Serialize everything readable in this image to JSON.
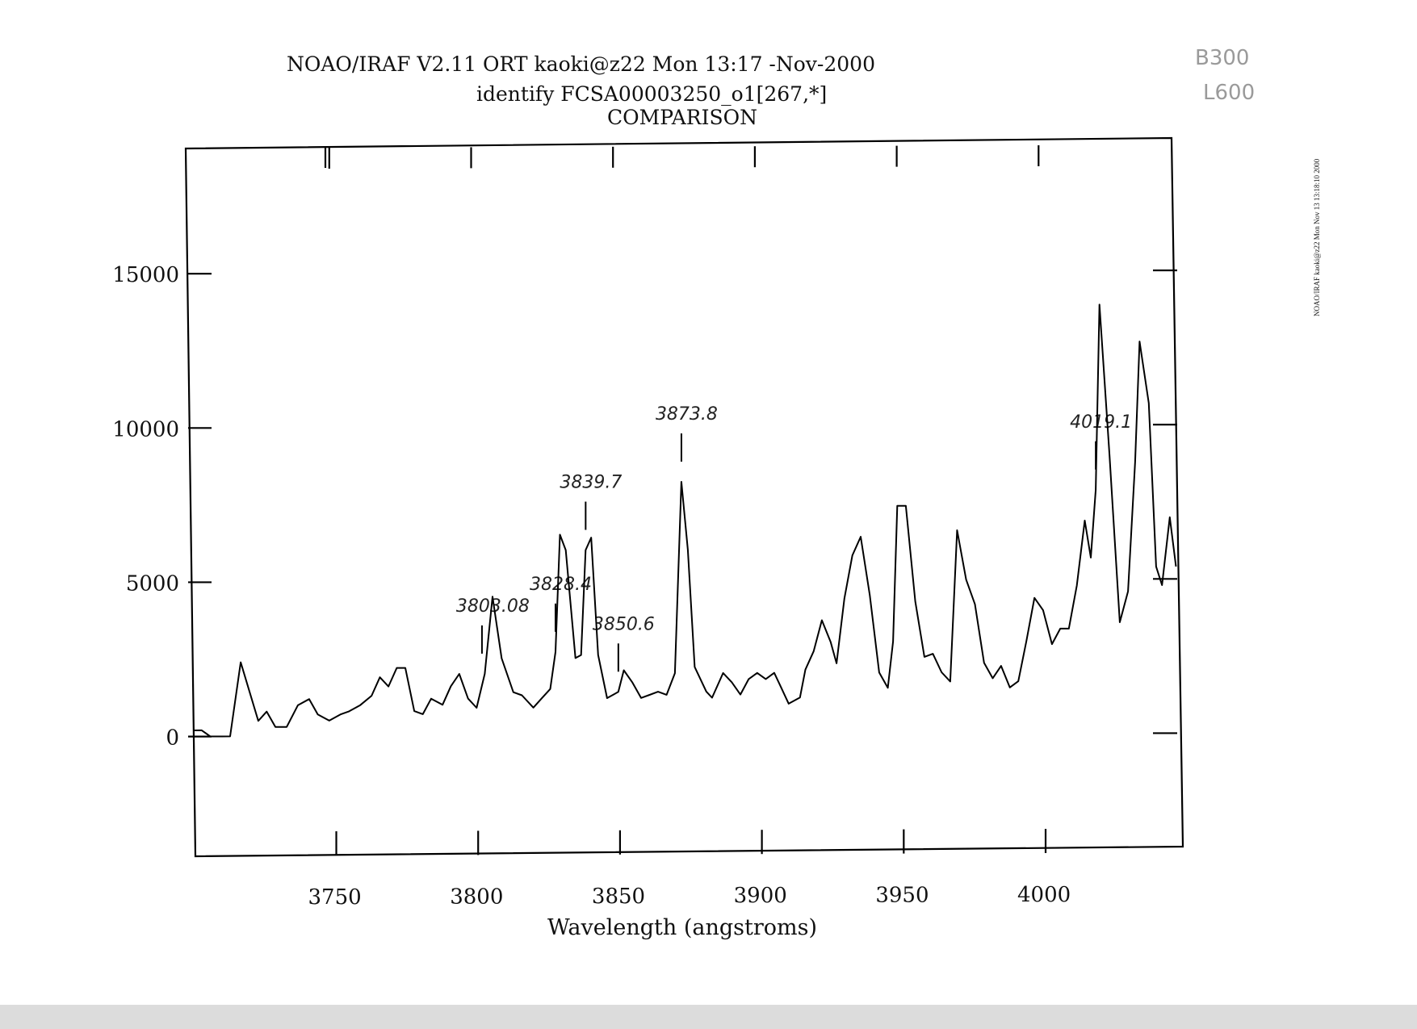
{
  "header": {
    "line1": "NOAO/IRAF V2.11 ORT kaoki@z22 Mon 13:17 -Nov-2000",
    "line2": "identify FCSA00003250_o1[267,*]",
    "line3": "COMPARISON"
  },
  "side_stamp": "NOAO/IRAF kaoki@z22 Mon Nov 13 13:18:10 2000",
  "corner_note": [
    "B300",
    "L600"
  ],
  "chart_data": {
    "type": "line",
    "title": "COMPARISON",
    "xlabel": "Wavelength (angstroms)",
    "ylabel": "",
    "xlim": [
      3700,
      4047
    ],
    "ylim": [
      -3800,
      19000
    ],
    "xticks": [
      3750,
      3800,
      3850,
      3900,
      3950,
      4000
    ],
    "yticks": [
      0,
      5000,
      10000,
      15000
    ],
    "grid": false,
    "series": [
      {
        "x": [
          3700,
          3703,
          3706,
          3710,
          3713,
          3717,
          3723,
          3726,
          3729,
          3733,
          3737,
          3741,
          3744,
          3748,
          3752,
          3755,
          3759,
          3763,
          3766,
          3769,
          3772,
          3775,
          3778,
          3781,
          3784,
          3788,
          3791,
          3794,
          3797,
          3800,
          3803,
          3806,
          3809,
          3813,
          3816,
          3820,
          3823,
          3826,
          3828,
          3830,
          3832,
          3835,
          3837,
          3839,
          3841,
          3843,
          3846,
          3850,
          3852,
          3855,
          3858,
          3861,
          3864,
          3867,
          3870,
          3873,
          3875,
          3877,
          3881,
          3883,
          3887,
          3890,
          3893,
          3896,
          3899,
          3902,
          3905,
          3907,
          3910,
          3914,
          3916,
          3919,
          3922,
          3925,
          3927,
          3930,
          3933,
          3936,
          3939,
          3942,
          3945,
          3947,
          3949,
          3952,
          3955,
          3958,
          3961,
          3964,
          3967,
          3970,
          3973,
          3976,
          3979,
          3982,
          3985,
          3988,
          3991,
          3994,
          3997,
          4000,
          4003,
          4006,
          4009,
          4012,
          4015,
          4017,
          4019,
          4021,
          4024,
          4027,
          4030,
          4033,
          4035,
          4038,
          4040,
          4042,
          4045,
          4047
        ],
        "values": [
          200,
          200,
          0,
          0,
          0,
          2400,
          500,
          800,
          300,
          300,
          1000,
          1200,
          700,
          500,
          700,
          800,
          1000,
          1300,
          1900,
          1600,
          2200,
          2200,
          800,
          700,
          1200,
          1000,
          1600,
          2000,
          1200,
          900,
          2000,
          4500,
          2500,
          1400,
          1300,
          900,
          1200,
          1500,
          2700,
          6500,
          6000,
          2500,
          2600,
          6000,
          6400,
          2600,
          1200,
          1400,
          2100,
          1700,
          1200,
          1300,
          1400,
          1300,
          2000,
          8200,
          6000,
          2200,
          1400,
          1200,
          2000,
          1700,
          1300,
          1800,
          2000,
          1800,
          2000,
          1600,
          1000,
          1200,
          2100,
          2700,
          3700,
          3000,
          2300,
          4400,
          5800,
          6400,
          4500,
          2000,
          1500,
          3000,
          7400,
          7400,
          4300,
          2500,
          2600,
          2000,
          1700,
          6600,
          5000,
          4200,
          2300,
          1800,
          2200,
          1500,
          1700,
          3000,
          4400,
          4000,
          2900,
          3400,
          3400,
          4800,
          6900,
          5700,
          7900,
          13900,
          9000,
          3600,
          4600,
          8800,
          12700,
          10700,
          5400,
          4800,
          7000,
          5400
        ]
      }
    ],
    "annotations": [
      {
        "label": "3803.08",
        "x": 3802
      },
      {
        "label": "3828.4",
        "x": 3828
      },
      {
        "label": "3839.7",
        "x": 3839
      },
      {
        "label": "3850.6",
        "x": 3850
      },
      {
        "label": "3873.8",
        "x": 3873
      },
      {
        "label": "4019.1",
        "x": 4019
      }
    ],
    "line_color": "#000000"
  }
}
